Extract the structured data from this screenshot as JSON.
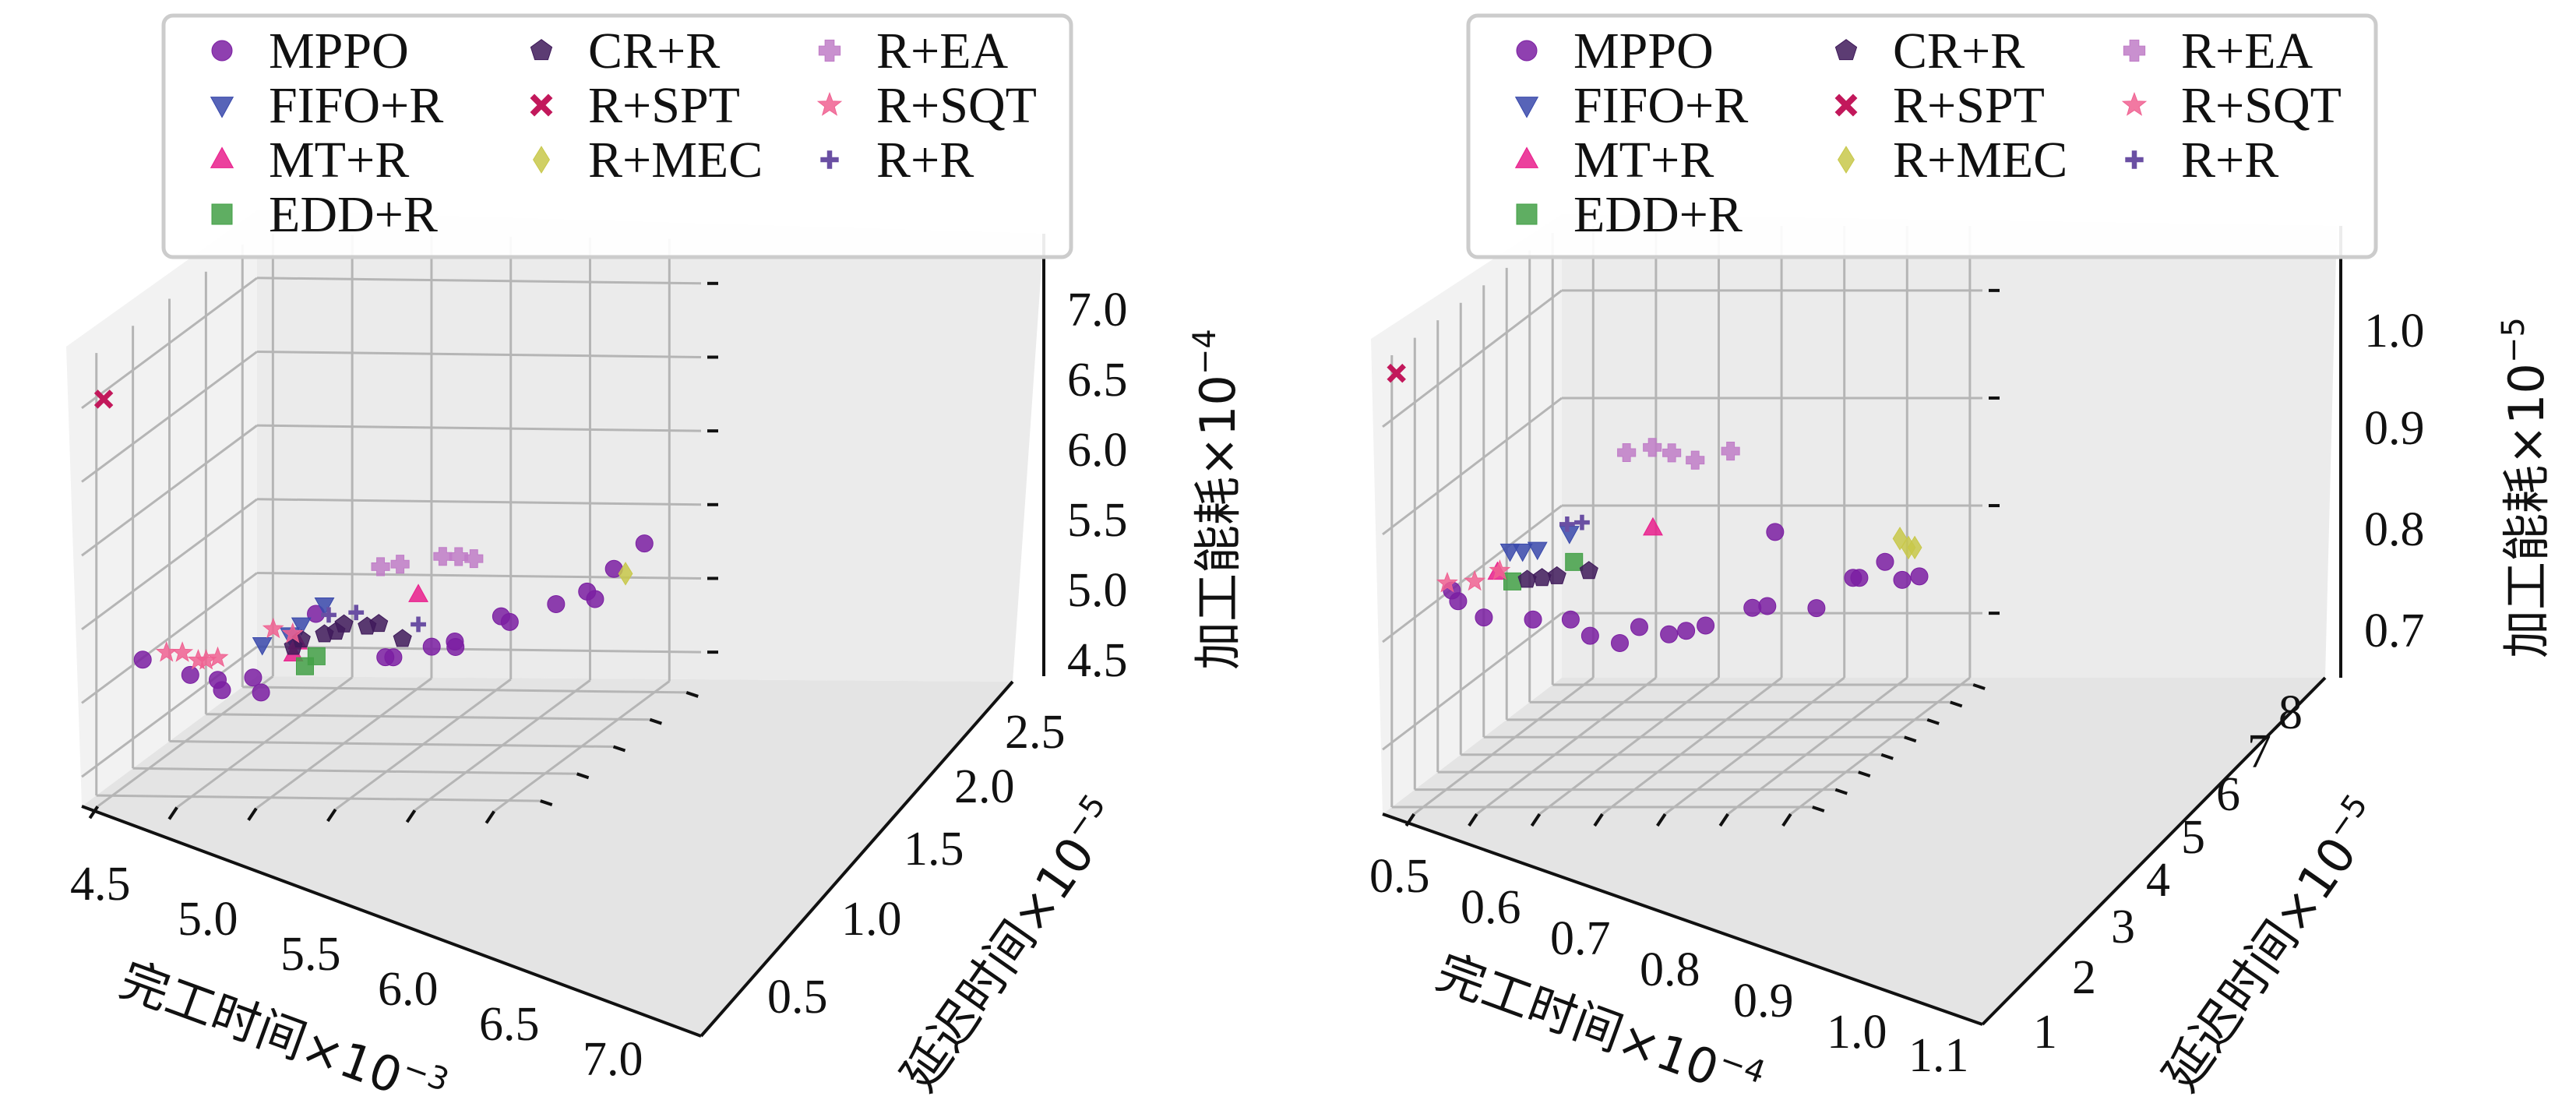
{
  "chart_data": [
    {
      "type": "scatter",
      "dimensions": "3d",
      "xlabel": "完工时间×10",
      "xlabel_exp": "−3",
      "ylabel": "延迟时间×10",
      "ylabel_exp": "−5",
      "zlabel": "加工能耗×10",
      "zlabel_exp": "−4",
      "xticks": [
        "4.5",
        "5.0",
        "5.5",
        "6.0",
        "6.5",
        "7.0"
      ],
      "yticks": [
        "0.5",
        "1.0",
        "1.5",
        "2.0",
        "2.5"
      ],
      "zticks": [
        "4.5",
        "5.0",
        "5.5",
        "6.0",
        "6.5",
        "7.0"
      ],
      "xlim": [
        4.4,
        7.2
      ],
      "ylim": [
        0.3,
        2.7
      ],
      "zlim": [
        4.3,
        7.3
      ],
      "grid": true,
      "legend_position": "top",
      "series": [
        {
          "name": "MPPO",
          "points": [
            [
              4.6,
              2.3,
              5.15
            ],
            [
              4.9,
              2.3,
              5.05
            ],
            [
              5.05,
              2.25,
              5.0
            ],
            [
              5.1,
              2.3,
              4.95
            ],
            [
              5.25,
              2.2,
              5.0
            ],
            [
              5.3,
              2.2,
              4.9
            ],
            [
              5.6,
              2.1,
              5.4
            ],
            [
              5.9,
              1.8,
              5.0
            ],
            [
              5.95,
              1.8,
              5.0
            ],
            [
              6.1,
              1.6,
              5.0
            ],
            [
              6.2,
              1.5,
              5.0
            ],
            [
              6.25,
              1.6,
              5.0
            ],
            [
              6.4,
              1.3,
              5.1
            ],
            [
              6.5,
              1.4,
              5.1
            ],
            [
              6.7,
              1.2,
              5.15
            ],
            [
              6.85,
              1.1,
              5.2
            ],
            [
              6.9,
              1.1,
              5.15
            ],
            [
              6.95,
              0.95,
              5.3
            ],
            [
              7.05,
              0.75,
              5.4
            ]
          ]
        },
        {
          "name": "FIFO+R",
          "points": [
            [
              5.4,
              2.4,
              5.3
            ],
            [
              5.55,
              2.35,
              5.35
            ],
            [
              5.6,
              2.3,
              5.4
            ],
            [
              5.7,
              2.2,
              5.5
            ]
          ]
        },
        {
          "name": "MT+R",
          "points": [
            [
              5.55,
              2.3,
              5.2
            ],
            [
              5.6,
              2.35,
              5.3
            ],
            [
              6.2,
              2.0,
              5.5
            ]
          ]
        },
        {
          "name": "EDD+R",
          "points": [
            [
              5.6,
              2.25,
              5.1
            ],
            [
              5.65,
              2.2,
              5.15
            ]
          ]
        },
        {
          "name": "CR+R",
          "points": [
            [
              5.55,
              2.3,
              5.25
            ],
            [
              5.6,
              2.3,
              5.3
            ],
            [
              5.7,
              2.2,
              5.3
            ],
            [
              5.75,
              2.15,
              5.3
            ],
            [
              5.8,
              2.15,
              5.35
            ],
            [
              5.9,
              2.05,
              5.3
            ],
            [
              5.95,
              2.0,
              5.3
            ],
            [
              6.1,
              2.0,
              5.2
            ]
          ]
        },
        {
          "name": "R+SPT",
          "points": [
            [
              4.4,
              2.4,
              6.95
            ]
          ]
        },
        {
          "name": "R+MEC",
          "points": [
            [
              7.0,
              0.9,
              5.25
            ]
          ]
        },
        {
          "name": "R+EA",
          "points": [
            [
              6.1,
              2.3,
              5.8
            ],
            [
              6.2,
              2.25,
              5.8
            ],
            [
              6.4,
              2.1,
              5.8
            ],
            [
              6.5,
              2.1,
              5.8
            ],
            [
              6.55,
              2.0,
              5.75
            ]
          ]
        },
        {
          "name": "R+SQT",
          "points": [
            [
              4.75,
              2.3,
              5.2
            ],
            [
              4.85,
              2.3,
              5.2
            ],
            [
              4.95,
              2.3,
              5.15
            ],
            [
              5.0,
              2.3,
              5.15
            ],
            [
              5.05,
              2.25,
              5.15
            ],
            [
              5.4,
              2.25,
              5.35
            ],
            [
              5.5,
              2.2,
              5.3
            ]
          ]
        },
        {
          "name": "R+R",
          "points": [
            [
              5.75,
              2.25,
              5.45
            ],
            [
              5.9,
              2.2,
              5.45
            ],
            [
              6.2,
              2.0,
              5.3
            ]
          ]
        }
      ]
    },
    {
      "type": "scatter",
      "dimensions": "3d",
      "xlabel": "完工时间×10",
      "xlabel_exp": "−4",
      "ylabel": "延迟时间×10",
      "ylabel_exp": "−5",
      "zlabel": "加工能耗×10",
      "zlabel_exp": "−5",
      "xticks": [
        "0.5",
        "0.6",
        "0.7",
        "0.8",
        "0.9",
        "1.0",
        "1.1"
      ],
      "yticks": [
        "1",
        "2",
        "3",
        "4",
        "5",
        "6",
        "7",
        "8"
      ],
      "zticks": [
        "0.7",
        "0.8",
        "0.9",
        "1.0"
      ],
      "xlim": [
        0.45,
        1.12
      ],
      "ylim": [
        0.6,
        8.4
      ],
      "zlim": [
        0.64,
        1.06
      ],
      "grid": true,
      "legend_position": "top",
      "series": [
        {
          "name": "MPPO",
          "points": [
            [
              0.52,
              7.3,
              0.83
            ],
            [
              0.53,
              7.3,
              0.82
            ],
            [
              0.56,
              7.0,
              0.8
            ],
            [
              0.62,
              6.5,
              0.79
            ],
            [
              0.68,
              6.5,
              0.79
            ],
            [
              0.7,
              6.2,
              0.77
            ],
            [
              0.74,
              6.0,
              0.76
            ],
            [
              0.76,
              5.7,
              0.77
            ],
            [
              0.8,
              5.5,
              0.76
            ],
            [
              0.82,
              5.3,
              0.76
            ],
            [
              0.84,
              5.0,
              0.76
            ],
            [
              0.9,
              4.6,
              0.77
            ],
            [
              0.92,
              4.5,
              0.77
            ],
            [
              0.98,
              4.0,
              0.76
            ],
            [
              1.02,
              3.5,
              0.78
            ],
            [
              1.03,
              3.5,
              0.78
            ],
            [
              1.06,
              3.2,
              0.79
            ],
            [
              1.08,
              3.0,
              0.77
            ],
            [
              1.1,
              2.8,
              0.77
            ],
            [
              0.98,
              5.8,
              0.86
            ]
          ]
        },
        {
          "name": "FIFO+R",
          "points": [
            [
              0.62,
              7.5,
              0.87
            ],
            [
              0.64,
              7.5,
              0.87
            ],
            [
              0.66,
              7.4,
              0.87
            ],
            [
              0.7,
              7.1,
              0.88
            ]
          ]
        },
        {
          "name": "MT+R",
          "points": [
            [
              0.6,
              7.5,
              0.85
            ],
            [
              0.8,
              6.2,
              0.87
            ]
          ]
        },
        {
          "name": "EDD+R",
          "points": [
            [
              0.62,
              7.4,
              0.84
            ],
            [
              0.7,
              6.9,
              0.85
            ]
          ]
        },
        {
          "name": "CR+R",
          "points": [
            [
              0.64,
              7.3,
              0.84
            ],
            [
              0.66,
              7.2,
              0.84
            ],
            [
              0.68,
              7.1,
              0.84
            ],
            [
              0.72,
              6.8,
              0.84
            ]
          ]
        },
        {
          "name": "R+SPT",
          "points": [
            [
              0.45,
              7.8,
              1.04
            ]
          ]
        },
        {
          "name": "R+MEC",
          "points": [
            [
              1.08,
              3.1,
              0.81
            ],
            [
              1.09,
              3.0,
              0.8
            ],
            [
              1.1,
              3.0,
              0.8
            ]
          ]
        },
        {
          "name": "R+EA",
          "points": [
            [
              0.78,
              6.8,
              0.95
            ],
            [
              0.81,
              6.5,
              0.95
            ],
            [
              0.83,
              6.2,
              0.94
            ],
            [
              0.86,
              6.0,
              0.93
            ],
            [
              0.92,
              6.1,
              0.94
            ]
          ]
        },
        {
          "name": "R+SQT",
          "points": [
            [
              0.52,
              7.5,
              0.84
            ],
            [
              0.56,
              7.4,
              0.84
            ],
            [
              0.6,
              7.4,
              0.85
            ]
          ]
        },
        {
          "name": "R+R",
          "points": [
            [
              0.7,
              7.2,
              0.89
            ],
            [
              0.72,
              7.1,
              0.89
            ]
          ]
        }
      ]
    }
  ],
  "legend": {
    "entries": [
      {
        "label": "MPPO",
        "marker": "circle",
        "color": "#7b1fa2"
      },
      {
        "label": "CR+R",
        "marker": "pentagon",
        "color": "#3f1a5a"
      },
      {
        "label": "R+EA",
        "marker": "plus-filled",
        "color": "#c07cc7"
      },
      {
        "label": "FIFO+R",
        "marker": "triangle-down",
        "color": "#3949ab"
      },
      {
        "label": "R+SPT",
        "marker": "x",
        "color": "#c2185b"
      },
      {
        "label": "R+SQT",
        "marker": "star",
        "color": "#f06292"
      },
      {
        "label": "MT+R",
        "marker": "triangle-up",
        "color": "#e91e8c"
      },
      {
        "label": "R+MEC",
        "marker": "diamond",
        "color": "#c8c84a"
      },
      {
        "label": "R+R",
        "marker": "plus",
        "color": "#6a4fa3"
      },
      {
        "label": "EDD+R",
        "marker": "square",
        "color": "#43a047"
      }
    ]
  }
}
